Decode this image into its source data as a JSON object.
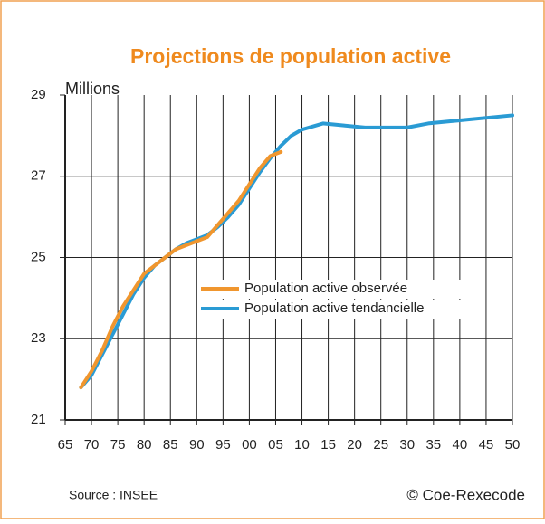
{
  "chart_data": {
    "type": "line",
    "title": "Projections de population active",
    "ylabel": "Millions",
    "source": "Source : INSEE",
    "copyright": "© Coe-Rexecode",
    "xlim": [
      1965,
      2050
    ],
    "xticks": [
      {
        "value": 1965,
        "label": "65"
      },
      {
        "value": 1970,
        "label": "70"
      },
      {
        "value": 1975,
        "label": "75"
      },
      {
        "value": 1980,
        "label": "80"
      },
      {
        "value": 1985,
        "label": "85"
      },
      {
        "value": 1990,
        "label": "90"
      },
      {
        "value": 1995,
        "label": "95"
      },
      {
        "value": 2000,
        "label": "00"
      },
      {
        "value": 2005,
        "label": "05"
      },
      {
        "value": 2010,
        "label": "10"
      },
      {
        "value": 2015,
        "label": "15"
      },
      {
        "value": 2020,
        "label": "20"
      },
      {
        "value": 2025,
        "label": "25"
      },
      {
        "value": 2030,
        "label": "30"
      },
      {
        "value": 2035,
        "label": "35"
      },
      {
        "value": 2040,
        "label": "40"
      },
      {
        "value": 2045,
        "label": "45"
      },
      {
        "value": 2050,
        "label": "50"
      }
    ],
    "ylim": [
      21,
      29
    ],
    "yticks": [
      21,
      23,
      25,
      27,
      29
    ],
    "grid": true,
    "series": [
      {
        "name": "Population active observée",
        "color": "#f0962e",
        "x": [
          1968,
          1970,
          1972,
          1974,
          1976,
          1978,
          1980,
          1982,
          1984,
          1986,
          1988,
          1990,
          1992,
          1994,
          1996,
          1998,
          2000,
          2002,
          2004,
          2006
        ],
        "values": [
          21.8,
          22.2,
          22.7,
          23.3,
          23.8,
          24.2,
          24.6,
          24.8,
          25.0,
          25.2,
          25.3,
          25.4,
          25.5,
          25.8,
          26.1,
          26.4,
          26.8,
          27.2,
          27.5,
          27.6
        ]
      },
      {
        "name": "Population active tendancielle",
        "color": "#2a9bd4",
        "x": [
          1968,
          1970,
          1972,
          1974,
          1976,
          1978,
          1980,
          1982,
          1984,
          1986,
          1988,
          1990,
          1992,
          1994,
          1996,
          1998,
          2000,
          2002,
          2004,
          2006,
          2008,
          2010,
          2014,
          2018,
          2022,
          2026,
          2030,
          2034,
          2038,
          2042,
          2046,
          2050
        ],
        "values": [
          21.8,
          22.1,
          22.6,
          23.1,
          23.6,
          24.1,
          24.5,
          24.8,
          25.0,
          25.2,
          25.35,
          25.45,
          25.55,
          25.75,
          26.0,
          26.3,
          26.7,
          27.1,
          27.45,
          27.75,
          28.0,
          28.15,
          28.3,
          28.25,
          28.2,
          28.2,
          28.2,
          28.3,
          28.35,
          28.4,
          28.45,
          28.5
        ]
      }
    ]
  }
}
